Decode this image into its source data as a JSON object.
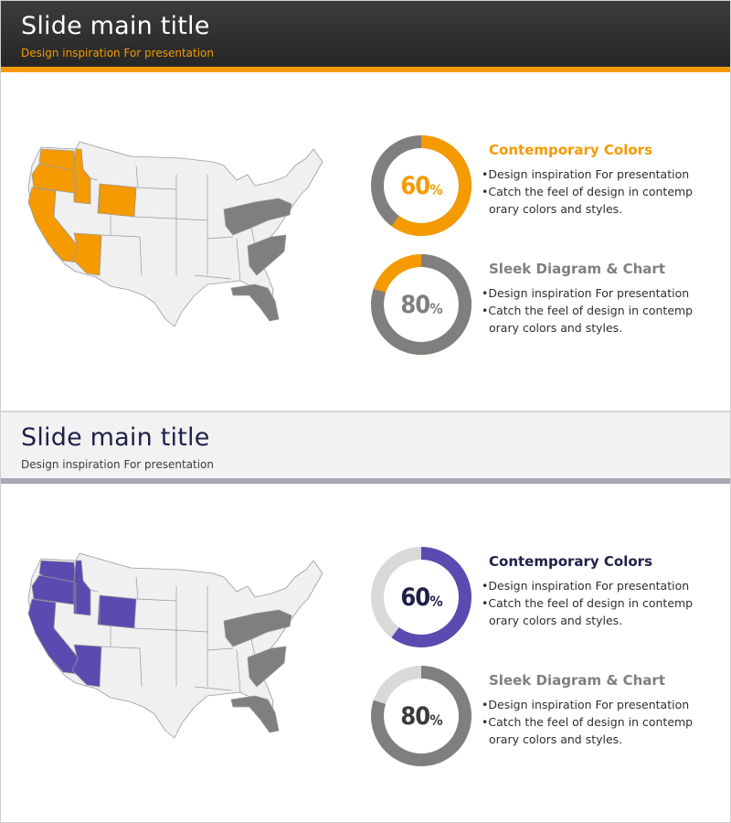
{
  "slides": [
    {
      "title": "Slide main title",
      "subtitle": "Design inspiration For presentation",
      "theme": {
        "header_bg": "#2b2b2b",
        "accent": "#f59a00",
        "neutral": "#7f7f7f",
        "title_color": "#ffffff"
      },
      "charts": [
        {
          "value": 60,
          "number": "60",
          "unit": "%",
          "number_color": "#f59a00",
          "heading": "Contemporary Colors",
          "heading_color": "#f59a00",
          "bullets": [
            "•Design inspiration For presentation",
            "•Catch the feel of design in contemp"
          ],
          "continuation": "orary colors and styles."
        },
        {
          "value": 80,
          "number": "80",
          "unit": "%",
          "number_color": "#7f7f7f",
          "heading": "Sleek Diagram & Chart",
          "heading_color": "#7f7f7f",
          "bullets": [
            "•Design inspiration For presentation",
            "•Catch the feel of design in contemp"
          ],
          "continuation": "orary colors and styles."
        }
      ]
    },
    {
      "title": "Slide main title",
      "subtitle": "Design inspiration For presentation",
      "theme": {
        "header_bg": "#f2f2f2",
        "accent": "#5b4bb0",
        "neutral": "#7f7f7f",
        "title_color": "#1e2048"
      },
      "charts": [
        {
          "value": 60,
          "number": "60",
          "unit": "%",
          "number_color": "#1e2048",
          "heading": "Contemporary Colors",
          "heading_color": "#1e2048",
          "bullets": [
            "•Design inspiration For presentation",
            "•Catch the feel of design in contemp"
          ],
          "continuation": "orary colors and styles."
        },
        {
          "value": 80,
          "number": "80",
          "unit": "%",
          "number_color": "#3a3a3a",
          "heading": "Sleek Diagram & Chart",
          "heading_color": "#7f7f7f",
          "bullets": [
            "•Design inspiration For presentation",
            "•Catch the feel of design in contemp"
          ],
          "continuation": "orary colors and styles."
        }
      ]
    }
  ]
}
